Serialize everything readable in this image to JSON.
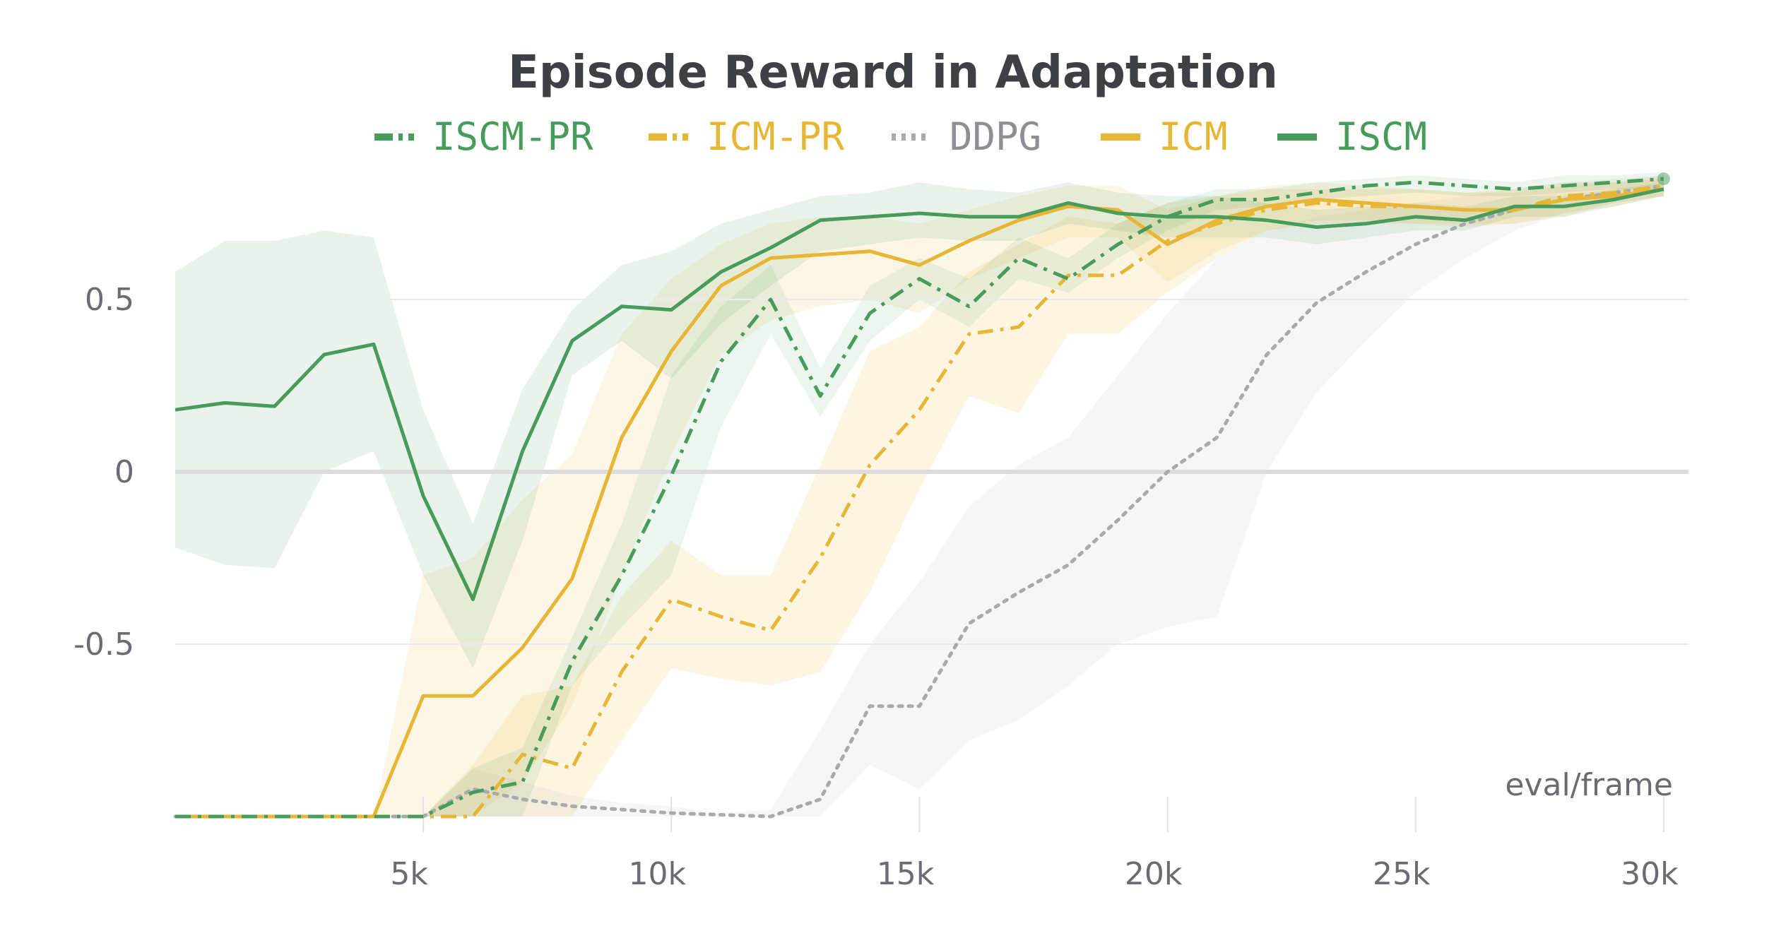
{
  "chart_data": {
    "type": "line",
    "title": "Episode Reward in Adaptation",
    "xlabel": "eval/frame",
    "ylabel": "",
    "xlim": [
      0,
      30500
    ],
    "ylim": [
      -1.0,
      1.0
    ],
    "x_ticks": [
      5000,
      10000,
      15000,
      20000,
      25000,
      30000
    ],
    "x_tick_labels": [
      "5k",
      "10k",
      "15k",
      "20k",
      "25k",
      "30k"
    ],
    "y_ticks": [
      -0.5,
      0,
      0.5
    ],
    "y_tick_labels": [
      "-0.5",
      "0",
      "0.5"
    ],
    "legend_position": "top-center",
    "series": [
      {
        "name": "ISCM-PR",
        "color": "#489c5b",
        "dash": "dashdot",
        "x": [
          0,
          1000,
          2000,
          3000,
          4000,
          5000,
          6000,
          7000,
          8000,
          9000,
          10000,
          11000,
          12000,
          13000,
          14000,
          15000,
          16000,
          17000,
          18000,
          19000,
          20000,
          21000,
          22000,
          23000,
          24000,
          25000,
          26000,
          27000,
          28000,
          29000,
          30000
        ],
        "values": [
          -1,
          -1,
          -1,
          -1,
          -1,
          -1,
          -0.93,
          -0.9,
          -0.55,
          -0.3,
          -0.01,
          0.32,
          0.5,
          0.22,
          0.46,
          0.56,
          0.48,
          0.62,
          0.56,
          0.66,
          0.74,
          0.79,
          0.79,
          0.81,
          0.83,
          0.84,
          0.83,
          0.82,
          0.83,
          0.84,
          0.85
        ],
        "band_low": [
          -1,
          -1,
          -1,
          -1,
          -1,
          -1,
          -1,
          -1,
          -0.62,
          -0.45,
          -0.3,
          0.13,
          0.4,
          0.16,
          0.38,
          0.5,
          0.42,
          0.56,
          0.52,
          0.62,
          0.7,
          0.76,
          0.77,
          0.79,
          0.8,
          0.81,
          0.8,
          0.8,
          0.81,
          0.82,
          0.82
        ],
        "band_high": [
          -1,
          -1,
          -1,
          -1,
          -1,
          -1,
          -0.86,
          -0.8,
          -0.48,
          -0.15,
          0.28,
          0.48,
          0.6,
          0.3,
          0.54,
          0.62,
          0.56,
          0.68,
          0.62,
          0.72,
          0.78,
          0.82,
          0.82,
          0.84,
          0.85,
          0.86,
          0.85,
          0.84,
          0.86,
          0.86,
          0.87
        ]
      },
      {
        "name": "ICM-PR",
        "color": "#e8b635",
        "dash": "dashdot",
        "x": [
          0,
          1000,
          2000,
          3000,
          4000,
          5000,
          6000,
          7000,
          8000,
          9000,
          10000,
          11000,
          12000,
          13000,
          14000,
          15000,
          16000,
          17000,
          18000,
          19000,
          20000,
          21000,
          22000,
          23000,
          24000,
          25000,
          26000,
          27000,
          28000,
          29000,
          30000
        ],
        "values": [
          -1,
          -1,
          -1,
          -1,
          -1,
          -1,
          -1,
          -0.82,
          -0.86,
          -0.58,
          -0.37,
          -0.42,
          -0.46,
          -0.25,
          0.02,
          0.18,
          0.4,
          0.42,
          0.57,
          0.57,
          0.67,
          0.72,
          0.76,
          0.78,
          0.77,
          0.77,
          0.76,
          0.76,
          0.8,
          0.81,
          0.83
        ],
        "band_low": [
          -1,
          -1,
          -1,
          -1,
          -1,
          -1,
          -1,
          -1,
          -1,
          -0.78,
          -0.57,
          -0.6,
          -0.62,
          -0.58,
          -0.35,
          -0.05,
          0.22,
          0.17,
          0.4,
          0.4,
          0.52,
          0.62,
          0.7,
          0.72,
          0.72,
          0.72,
          0.72,
          0.72,
          0.74,
          0.78,
          0.8
        ],
        "band_high": [
          -1,
          -1,
          -1,
          -1,
          -1,
          -1,
          -0.85,
          -0.65,
          -0.62,
          -0.36,
          -0.2,
          -0.3,
          -0.3,
          0.02,
          0.35,
          0.42,
          0.58,
          0.66,
          0.74,
          0.72,
          0.78,
          0.8,
          0.82,
          0.82,
          0.82,
          0.82,
          0.81,
          0.82,
          0.84,
          0.84,
          0.86
        ]
      },
      {
        "name": "DDPG",
        "color": "#a9a9ae",
        "dash": "dot",
        "x": [
          0,
          1000,
          2000,
          3000,
          4000,
          5000,
          6000,
          7000,
          8000,
          9000,
          10000,
          11000,
          12000,
          13000,
          14000,
          15000,
          16000,
          17000,
          18000,
          19000,
          20000,
          21000,
          22000,
          23000,
          24000,
          25000,
          26000,
          27000,
          28000,
          29000,
          30000
        ],
        "values": [
          -1,
          -1,
          -1,
          -1,
          -1,
          -1,
          -0.92,
          -0.95,
          -0.97,
          -0.98,
          -0.99,
          -0.995,
          -1,
          -0.95,
          -0.68,
          -0.68,
          -0.44,
          -0.35,
          -0.27,
          -0.14,
          0,
          0.1,
          0.34,
          0.49,
          0.58,
          0.66,
          0.72,
          0.76,
          0.79,
          0.81,
          0.83
        ],
        "band_low": [
          -1,
          -1,
          -1,
          -1,
          -1,
          -1,
          -1,
          -1,
          -1,
          -1,
          -1,
          -1,
          -1,
          -1,
          -0.85,
          -0.92,
          -0.78,
          -0.72,
          -0.62,
          -0.5,
          -0.45,
          -0.42,
          0,
          0.23,
          0.38,
          0.52,
          0.62,
          0.7,
          0.75,
          0.78,
          0.8
        ],
        "band_high": [
          -1,
          -1,
          -1,
          -1,
          -1,
          -1,
          -0.86,
          -0.9,
          -0.94,
          -0.96,
          -0.97,
          -0.99,
          -0.98,
          -0.75,
          -0.5,
          -0.32,
          -0.1,
          0.02,
          0.1,
          0.28,
          0.46,
          0.62,
          0.7,
          0.74,
          0.76,
          0.78,
          0.8,
          0.82,
          0.84,
          0.85,
          0.86
        ]
      },
      {
        "name": "ICM",
        "color": "#e8b635",
        "dash": "solid",
        "x": [
          0,
          1000,
          2000,
          3000,
          4000,
          5000,
          6000,
          7000,
          8000,
          9000,
          10000,
          11000,
          12000,
          13000,
          14000,
          15000,
          16000,
          17000,
          18000,
          19000,
          20000,
          21000,
          22000,
          23000,
          24000,
          25000,
          26000,
          27000,
          28000,
          29000,
          30000
        ],
        "values": [
          -1,
          -1,
          -1,
          -1,
          -1,
          -0.65,
          -0.65,
          -0.51,
          -0.31,
          0.1,
          0.35,
          0.54,
          0.62,
          0.63,
          0.64,
          0.6,
          0.67,
          0.73,
          0.77,
          0.76,
          0.66,
          0.73,
          0.77,
          0.79,
          0.78,
          0.77,
          0.76,
          0.76,
          0.79,
          0.8,
          0.82
        ],
        "band_low": [
          -1,
          -1,
          -1,
          -1,
          -1,
          -1,
          -1,
          -0.9,
          -0.68,
          -0.3,
          0.05,
          0.34,
          0.44,
          0.48,
          0.5,
          0.46,
          0.56,
          0.62,
          0.68,
          0.68,
          0.55,
          0.64,
          0.7,
          0.73,
          0.73,
          0.72,
          0.71,
          0.72,
          0.75,
          0.77,
          0.8
        ],
        "band_high": [
          -1,
          -1,
          -1,
          -1,
          -1,
          -0.3,
          -0.25,
          -0.08,
          0.05,
          0.4,
          0.56,
          0.66,
          0.72,
          0.74,
          0.74,
          0.72,
          0.76,
          0.8,
          0.83,
          0.83,
          0.76,
          0.8,
          0.83,
          0.84,
          0.83,
          0.82,
          0.81,
          0.81,
          0.83,
          0.84,
          0.85
        ]
      },
      {
        "name": "ISCM",
        "color": "#489c5b",
        "dash": "solid",
        "x": [
          0,
          1000,
          2000,
          3000,
          4000,
          5000,
          6000,
          7000,
          8000,
          9000,
          10000,
          11000,
          12000,
          13000,
          14000,
          15000,
          16000,
          17000,
          18000,
          19000,
          20000,
          21000,
          22000,
          23000,
          24000,
          25000,
          26000,
          27000,
          28000,
          29000,
          30000
        ],
        "values": [
          0.18,
          0.2,
          0.19,
          0.34,
          0.37,
          -0.07,
          -0.37,
          0.06,
          0.38,
          0.48,
          0.47,
          0.58,
          0.65,
          0.73,
          0.74,
          0.75,
          0.74,
          0.74,
          0.78,
          0.75,
          0.74,
          0.74,
          0.73,
          0.71,
          0.72,
          0.74,
          0.73,
          0.77,
          0.77,
          0.79,
          0.82
        ],
        "band_low": [
          -0.22,
          -0.27,
          -0.28,
          0,
          0.06,
          -0.3,
          -0.57,
          -0.2,
          0.28,
          0.38,
          0.27,
          0.43,
          0.54,
          0.64,
          0.66,
          0.68,
          0.67,
          0.67,
          0.72,
          0.7,
          0.68,
          0.68,
          0.68,
          0.66,
          0.68,
          0.7,
          0.7,
          0.74,
          0.74,
          0.77,
          0.8
        ],
        "band_high": [
          0.58,
          0.67,
          0.67,
          0.7,
          0.68,
          0.18,
          -0.15,
          0.24,
          0.47,
          0.6,
          0.64,
          0.72,
          0.76,
          0.8,
          0.81,
          0.84,
          0.82,
          0.81,
          0.84,
          0.81,
          0.8,
          0.8,
          0.78,
          0.76,
          0.77,
          0.78,
          0.77,
          0.8,
          0.8,
          0.82,
          0.84
        ]
      }
    ]
  }
}
